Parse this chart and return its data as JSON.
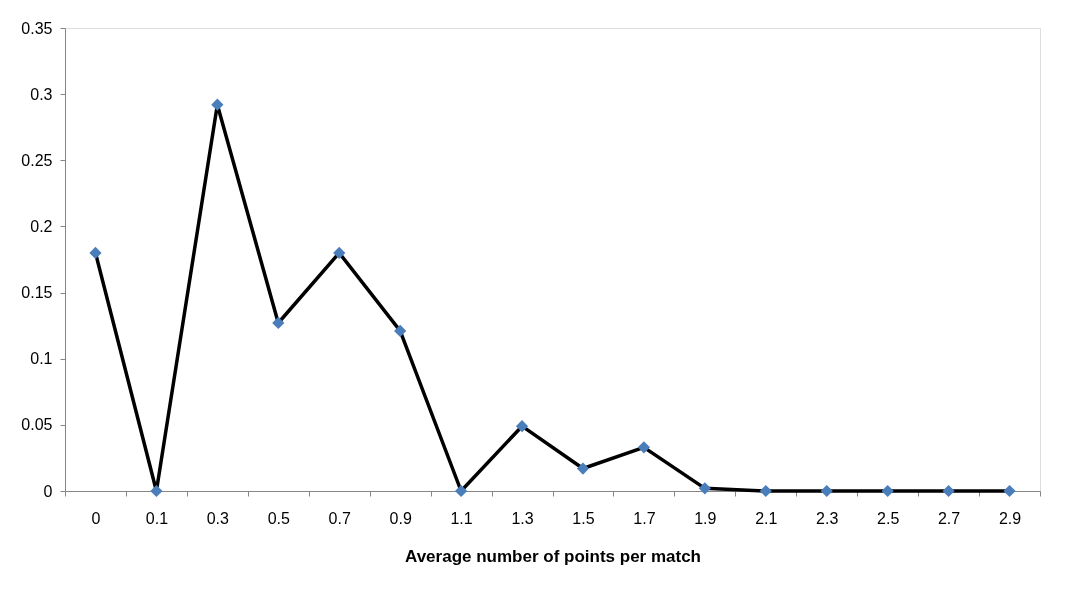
{
  "chart_data": {
    "type": "line",
    "xlabel": "Average number of points per match",
    "categories": [
      "0",
      "0.1",
      "0.3",
      "0.5",
      "0.7",
      "0.9",
      "1.1",
      "1.3",
      "1.5",
      "1.7",
      "1.9",
      "2.1",
      "2.3",
      "2.5",
      "2.7",
      "2.9"
    ],
    "series": [
      {
        "color": "#4a7ebb",
        "values": [
          0.18,
          0,
          0.292,
          0.127,
          0.18,
          0.121,
          0,
          0.049,
          0.017,
          0.033,
          0.002,
          0,
          0,
          0,
          0,
          0
        ]
      }
    ],
    "ylim": [
      0,
      0.35
    ],
    "yticks": [
      0,
      0.05,
      0.1,
      0.15,
      0.2,
      0.25,
      0.3,
      0.35
    ],
    "grid": false,
    "marker": "diamond",
    "line_style": "solid"
  }
}
